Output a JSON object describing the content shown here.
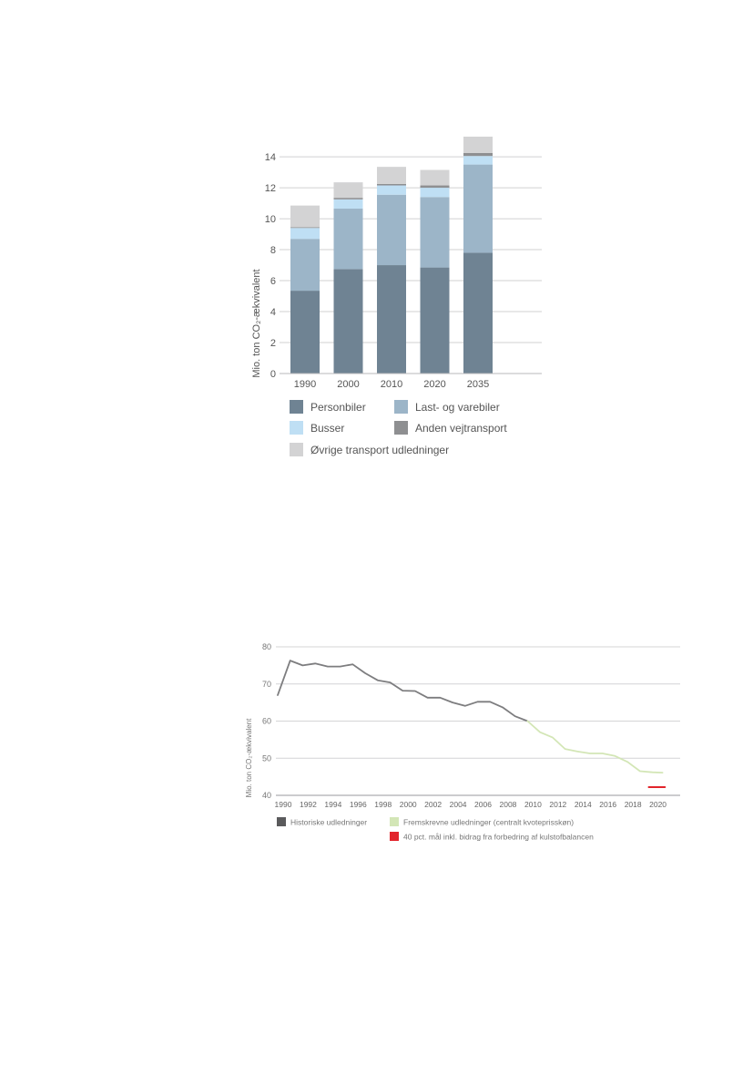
{
  "chart_data": [
    {
      "type": "bar",
      "stacked": true,
      "ylabel": "Mio. ton CO₂-ækvivalent",
      "ylim": [
        0,
        15.3
      ],
      "yticks": [
        0,
        2,
        4,
        6,
        8,
        10,
        12,
        14
      ],
      "grid": true,
      "legend_position": "bottom",
      "categories": [
        "1990",
        "2000",
        "2010",
        "2020",
        "2035"
      ],
      "series": [
        {
          "name": "Personbiler",
          "color": "#6f8393",
          "values": [
            5.35,
            6.75,
            7.0,
            6.85,
            7.8
          ]
        },
        {
          "name": "Last- og varebiler",
          "color": "#9cb5c8",
          "values": [
            3.35,
            3.9,
            4.55,
            4.55,
            5.7
          ]
        },
        {
          "name": "Busser",
          "color": "#bfdff4",
          "values": [
            0.7,
            0.6,
            0.6,
            0.6,
            0.55
          ]
        },
        {
          "name": "Anden vejtransport",
          "color": "#8e8f91",
          "values": [
            0.05,
            0.1,
            0.1,
            0.15,
            0.2
          ]
        },
        {
          "name": "Øvrige transport udledninger",
          "color": "#d3d3d4",
          "values": [
            1.4,
            1.0,
            1.1,
            1.0,
            1.05
          ]
        }
      ]
    },
    {
      "type": "line",
      "ylabel": "Mio. ton CO₂-ækvivalent",
      "xlim": [
        1989.8,
        2021
      ],
      "ylim": [
        40,
        80
      ],
      "yticks": [
        40,
        50,
        60,
        70,
        80
      ],
      "xticks": [
        1990,
        1992,
        1994,
        1996,
        1998,
        2000,
        2002,
        2004,
        2006,
        2008,
        2010,
        2012,
        2014,
        2016,
        2018,
        2020
      ],
      "grid": true,
      "legend_position": "bottom",
      "series": [
        {
          "name": "Historiske udledninger",
          "color": "#7d7d7f",
          "x": [
            1990,
            1991,
            1992,
            1993,
            1994,
            1995,
            1996,
            1997,
            1998,
            1999,
            2000,
            2001,
            2002,
            2003,
            2004,
            2005,
            2006,
            2007,
            2008,
            2009,
            2010
          ],
          "y": [
            67,
            76.3,
            75,
            75.5,
            74.7,
            74.7,
            75.3,
            72.9,
            71,
            70.4,
            68.2,
            68.1,
            66.3,
            66.3,
            65,
            64.1,
            65.2,
            65.2,
            63.7,
            61.3,
            60
          ]
        },
        {
          "name": "Fremskrevne udledninger (centralt kvoteprisskøn)",
          "color": "#d3e6b6",
          "x": [
            2010,
            2011,
            2012,
            2013,
            2014,
            2015,
            2016,
            2017,
            2018,
            2019,
            2020,
            2020.8
          ],
          "y": [
            60,
            57,
            55.6,
            52.5,
            51.8,
            51.3,
            51.3,
            50.6,
            49,
            46.5,
            46.2,
            46.1
          ]
        },
        {
          "name": "40 pct. mål inkl. bidrag fra forbedring af kulstofbalancen",
          "color": "#e2242b",
          "x": [
            2019.7,
            2021
          ],
          "y": [
            42.2,
            42.2
          ]
        }
      ]
    }
  ]
}
